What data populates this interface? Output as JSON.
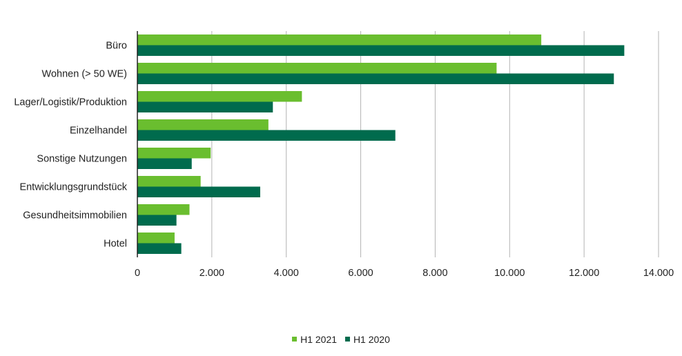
{
  "chart_data": {
    "type": "bar",
    "orientation": "horizontal",
    "categories": [
      "Büro",
      "Wohnen (> 50 WE)",
      "Lager/Logistik/Produktion",
      "Einzelhandel",
      "Sonstige Nutzungen",
      "Entwicklungsgrundstück",
      "Gesundheitsimmobilien",
      "Hotel"
    ],
    "series": [
      {
        "name": "H1 2021",
        "color": "#6abe2f",
        "values": [
          10850,
          9650,
          4420,
          3520,
          1970,
          1700,
          1400,
          1000
        ]
      },
      {
        "name": "H1 2020",
        "color": "#006b4d",
        "values": [
          13080,
          12800,
          3640,
          6930,
          1460,
          3300,
          1050,
          1180
        ]
      }
    ],
    "xlim": [
      0,
      14000
    ],
    "xticks": [
      0,
      2000,
      4000,
      6000,
      8000,
      10000,
      12000,
      14000
    ],
    "xtick_labels": [
      "0",
      "2.000",
      "4.000",
      "6.000",
      "8.000",
      "10.000",
      "12.000",
      "14.000"
    ],
    "grid": "vertical",
    "legend_position": "bottom-center"
  }
}
